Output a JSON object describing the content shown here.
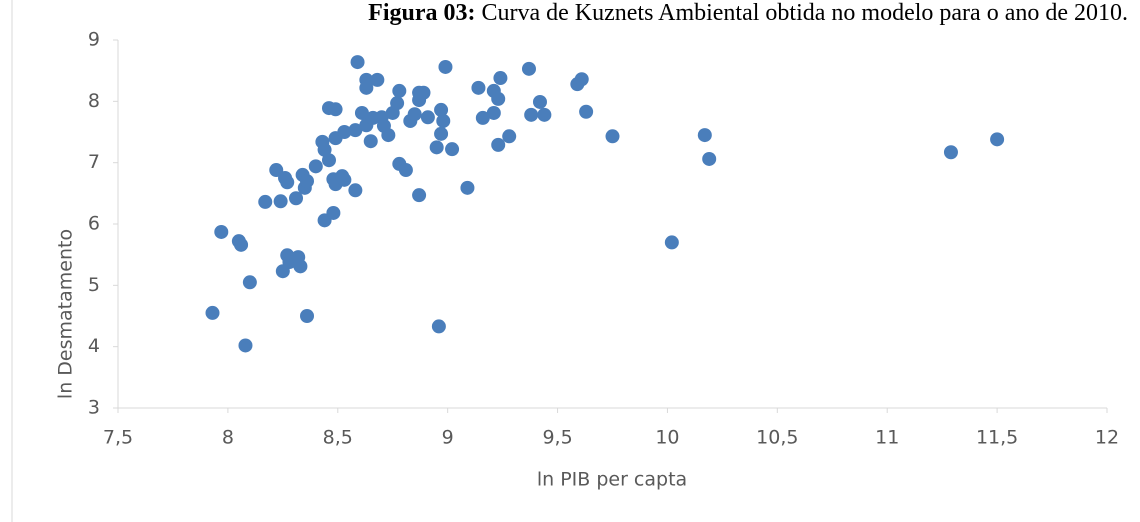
{
  "chart_data": {
    "type": "scatter",
    "title_label": "Figura 03:",
    "title": "Curva de Kuznets Ambiental obtida no modelo para o ano de 2010.",
    "x_label": "ln PIB per capta",
    "y_label": "ln Desmatamento",
    "color": "#4a7ebb",
    "xlim": [
      7.5,
      12
    ],
    "ylim": [
      3,
      9
    ],
    "xticks": [
      {
        "value": 7.5,
        "label": "7,5"
      },
      8,
      {
        "value": 8.5,
        "label": "8,5"
      },
      9,
      {
        "value": 9.5,
        "label": "9,5"
      },
      10,
      {
        "value": 10.5,
        "label": "10,5"
      },
      11,
      {
        "value": 11.5,
        "label": "11,5"
      },
      12
    ],
    "yticks": [
      3,
      4,
      5,
      6,
      7,
      8,
      9
    ],
    "x": [
      7.93,
      7.97,
      8.08,
      8.1,
      8.05,
      8.06,
      8.17,
      8.22,
      8.24,
      8.26,
      8.27,
      8.25,
      8.27,
      8.28,
      8.32,
      8.33,
      8.31,
      8.34,
      8.35,
      8.36,
      8.36,
      8.4,
      8.43,
      8.44,
      8.44,
      8.46,
      8.48,
      8.48,
      8.49,
      8.49,
      8.49,
      8.46,
      8.52,
      8.53,
      8.53,
      8.58,
      8.58,
      8.59,
      8.61,
      8.63,
      8.63,
      8.65,
      8.63,
      8.66,
      8.68,
      8.7,
      8.71,
      8.73,
      8.75,
      8.77,
      8.78,
      8.78,
      8.81,
      8.83,
      8.85,
      8.87,
      8.87,
      8.89,
      8.87,
      8.91,
      8.95,
      8.96,
      8.97,
      8.97,
      8.98,
      8.99,
      9.02,
      9.09,
      9.14,
      9.16,
      9.21,
      9.21,
      9.23,
      9.23,
      9.24,
      9.28,
      9.37,
      9.38,
      9.42,
      9.44,
      9.59,
      9.61,
      9.63,
      9.75,
      10.02,
      10.17,
      10.19,
      11.29,
      11.5
    ],
    "values": [
      4.55,
      5.87,
      4.02,
      5.05,
      5.72,
      5.66,
      6.36,
      6.88,
      6.37,
      6.75,
      6.68,
      5.23,
      5.49,
      5.38,
      5.46,
      5.31,
      6.42,
      6.8,
      6.59,
      6.7,
      4.5,
      6.94,
      7.34,
      7.21,
      6.06,
      7.04,
      6.18,
      6.73,
      6.65,
      7.4,
      7.87,
      7.89,
      6.78,
      6.72,
      7.5,
      7.53,
      6.55,
      8.64,
      7.81,
      8.35,
      8.22,
      7.35,
      7.61,
      7.73,
      8.35,
      7.74,
      7.6,
      7.45,
      7.81,
      7.97,
      8.17,
      6.98,
      6.88,
      7.68,
      7.79,
      8.02,
      8.14,
      8.14,
      6.47,
      7.74,
      7.25,
      4.33,
      7.86,
      7.47,
      7.68,
      8.56,
      7.22,
      6.59,
      8.22,
      7.73,
      8.17,
      7.81,
      8.04,
      7.29,
      8.38,
      7.43,
      8.53,
      7.78,
      7.99,
      7.78,
      8.28,
      8.36,
      7.83,
      7.43,
      5.7,
      7.45,
      7.06,
      7.17,
      7.38
    ]
  }
}
